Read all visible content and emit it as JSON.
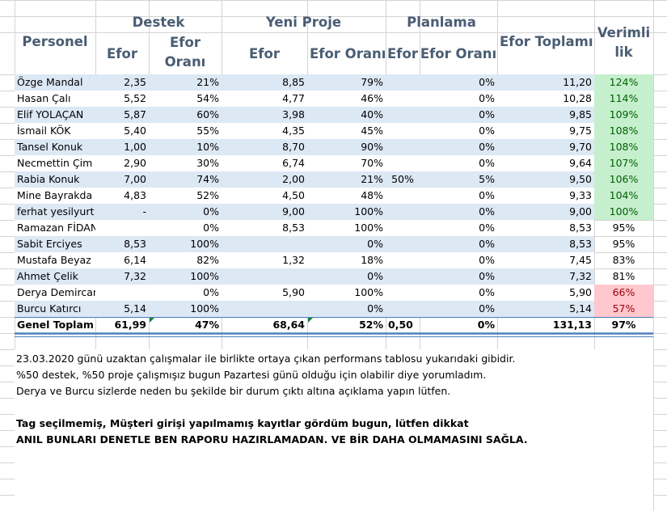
{
  "header": {
    "group_destek": "Destek",
    "group_yeni_proje": "Yeni Proje",
    "group_planlama": "Planlama",
    "personel": "Personel",
    "efor": "Efor",
    "efor_orani_line1": "Efor",
    "efor_orani_line2": "Oranı",
    "efor_orani": "Efor Oranı",
    "efor_toplami": "Efor Toplamı",
    "verimlilik_line1": "Verimli",
    "verimlilik_line2": "lik"
  },
  "rows": [
    {
      "name": "Özge Mandal",
      "d_efor": "2,35",
      "d_oran": "21%",
      "y_efor": "8,85",
      "y_oran": "79%",
      "p_efor": "",
      "p_oran": "0%",
      "toplam": "11,20",
      "verim": "124%",
      "status": "green"
    },
    {
      "name": "Hasan Çalı",
      "d_efor": "5,52",
      "d_oran": "54%",
      "y_efor": "4,77",
      "y_oran": "46%",
      "p_efor": "",
      "p_oran": "0%",
      "toplam": "10,28",
      "verim": "114%",
      "status": "green"
    },
    {
      "name": "Elif YOLAÇAN",
      "d_efor": "5,87",
      "d_oran": "60%",
      "y_efor": "3,98",
      "y_oran": "40%",
      "p_efor": "",
      "p_oran": "0%",
      "toplam": "9,85",
      "verim": "109%",
      "status": "green"
    },
    {
      "name": "İsmail KÖK",
      "d_efor": "5,40",
      "d_oran": "55%",
      "y_efor": "4,35",
      "y_oran": "45%",
      "p_efor": "",
      "p_oran": "0%",
      "toplam": "9,75",
      "verim": "108%",
      "status": "green"
    },
    {
      "name": "Tansel Konuk",
      "d_efor": "1,00",
      "d_oran": "10%",
      "y_efor": "8,70",
      "y_oran": "90%",
      "p_efor": "",
      "p_oran": "0%",
      "toplam": "9,70",
      "verim": "108%",
      "status": "green"
    },
    {
      "name": "Necmettin Çim",
      "d_efor": "2,90",
      "d_oran": "30%",
      "y_efor": "6,74",
      "y_oran": "70%",
      "p_efor": "",
      "p_oran": "0%",
      "toplam": "9,64",
      "verim": "107%",
      "status": "green"
    },
    {
      "name": "Rabia Konuk",
      "d_efor": "7,00",
      "d_oran": "74%",
      "y_efor": "2,00",
      "y_oran": "21%",
      "p_efor": "50%",
      "p_oran": "5%",
      "toplam": "9,50",
      "verim": "106%",
      "status": "green"
    },
    {
      "name": "Mine Bayrakda",
      "d_efor": "4,83",
      "d_oran": "52%",
      "y_efor": "4,50",
      "y_oran": "48%",
      "p_efor": "",
      "p_oran": "0%",
      "toplam": "9,33",
      "verim": "104%",
      "status": "green"
    },
    {
      "name": "ferhat yesilyurt",
      "d_efor": "-",
      "d_oran": "0%",
      "y_efor": "9,00",
      "y_oran": "100%",
      "p_efor": "",
      "p_oran": "0%",
      "toplam": "9,00",
      "verim": "100%",
      "status": "green"
    },
    {
      "name": "Ramazan FİDAN",
      "d_efor": "",
      "d_oran": "0%",
      "y_efor": "8,53",
      "y_oran": "100%",
      "p_efor": "",
      "p_oran": "0%",
      "toplam": "8,53",
      "verim": "95%",
      "status": "none"
    },
    {
      "name": "Sabit Erciyes",
      "d_efor": "8,53",
      "d_oran": "100%",
      "y_efor": "",
      "y_oran": "0%",
      "p_efor": "",
      "p_oran": "0%",
      "toplam": "8,53",
      "verim": "95%",
      "status": "none"
    },
    {
      "name": "Mustafa Beyaz",
      "d_efor": "6,14",
      "d_oran": "82%",
      "y_efor": "1,32",
      "y_oran": "18%",
      "p_efor": "",
      "p_oran": "0%",
      "toplam": "7,45",
      "verim": "83%",
      "status": "none"
    },
    {
      "name": "Ahmet Çelik",
      "d_efor": "7,32",
      "d_oran": "100%",
      "y_efor": "",
      "y_oran": "0%",
      "p_efor": "",
      "p_oran": "0%",
      "toplam": "7,32",
      "verim": "81%",
      "status": "none"
    },
    {
      "name": "Derya Demircan",
      "d_efor": "",
      "d_oran": "0%",
      "y_efor": "5,90",
      "y_oran": "100%",
      "p_efor": "",
      "p_oran": "0%",
      "toplam": "5,90",
      "verim": "66%",
      "status": "red"
    },
    {
      "name": "Burcu Katırcı",
      "d_efor": "5,14",
      "d_oran": "100%",
      "y_efor": "",
      "y_oran": "0%",
      "p_efor": "",
      "p_oran": "0%",
      "toplam": "5,14",
      "verim": "57%",
      "status": "red"
    }
  ],
  "total": {
    "name": "Genel Toplam",
    "d_efor": "61,99",
    "d_oran": "47%",
    "y_efor": "68,64",
    "y_oran": "52%",
    "p_efor": "0,50",
    "p_oran": "0%",
    "toplam": "131,13",
    "verim": "97%"
  },
  "notes": [
    {
      "text": "23.03.2020 günü uzaktan çalışmalar ile birlikte ortaya çıkan performans tablosu yukarıdaki gibidir.",
      "bold": false
    },
    {
      "text": "%50 destek, %50 proje çalışmışız bugun Pazartesi günü olduğu için olabilir diye yorumladım.",
      "bold": false
    },
    {
      "text": "Derya ve Burcu sizlerde neden bu şekilde bir durum çıktı altına açıklama yapın lütfen.",
      "bold": false
    },
    {
      "text": "",
      "bold": false
    },
    {
      "text": "Tag seçilmemiş, Müşteri girişi yapılmamış kayıtlar gördüm bugun, lütfen dikkat",
      "bold": true
    },
    {
      "text": "ANIL BUNLARI DENETLE BEN RAPORU HAZIRLAMADAN. VE BİR DAHA OLMAMASINI SAĞLA.",
      "bold": true
    }
  ],
  "colors": {
    "row_band": "#dde8f5",
    "green_fill": "#c6efce",
    "green_text": "#006100",
    "red_fill": "#ffc7ce",
    "red_text": "#9c0006",
    "header_text": "#4a5d73",
    "grid_line": "#d4d4d4",
    "total_rule": "#4f81bd",
    "error_marker": "#1a7f37"
  }
}
